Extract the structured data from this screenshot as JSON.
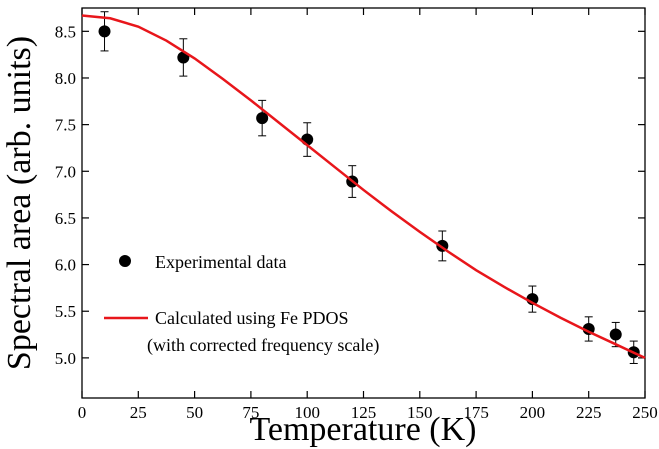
{
  "chart_data": {
    "type": "scatter",
    "x_label": "Temperature (K)",
    "y_label": "Spectral area (arb. units)",
    "xlim": [
      0,
      250
    ],
    "ylim": [
      4.57,
      8.75
    ],
    "xticks": [
      0,
      25,
      50,
      75,
      100,
      125,
      150,
      175,
      200,
      225,
      250
    ],
    "yticks": [
      {
        "value": 5,
        "label": "5.0"
      },
      5.5,
      {
        "value": 6,
        "label": "6.0"
      },
      6.5,
      {
        "value": 7,
        "label": "7.0"
      },
      7.5,
      {
        "value": 8,
        "label": "8.0"
      },
      8.5
    ],
    "series": [
      {
        "name": "Experimental data",
        "type": "scatter",
        "color": "#000000",
        "x": [
          10,
          45,
          80,
          100,
          120,
          160,
          200,
          225,
          237,
          245
        ],
        "values": [
          8.5,
          8.22,
          7.57,
          7.34,
          6.89,
          6.2,
          5.63,
          5.31,
          5.25,
          5.06
        ],
        "errors": [
          0.21,
          0.2,
          0.19,
          0.18,
          0.17,
          0.16,
          0.14,
          0.13,
          0.13,
          0.12
        ]
      },
      {
        "name": "Calculated using Fe PDOS (with corrected frequency scale)",
        "type": "line",
        "color": "#e8161b",
        "x": [
          0,
          12.5,
          25,
          37.5,
          50,
          62.5,
          75,
          87.5,
          100,
          112.5,
          125,
          137.5,
          150,
          162.5,
          175,
          187.5,
          200,
          212.5,
          225,
          237.5,
          250
        ],
        "values": [
          8.67,
          8.64,
          8.55,
          8.4,
          8.21,
          7.99,
          7.76,
          7.52,
          7.28,
          7.04,
          6.8,
          6.57,
          6.35,
          6.14,
          5.94,
          5.76,
          5.59,
          5.43,
          5.28,
          5.14,
          5.0
        ]
      }
    ]
  }
}
